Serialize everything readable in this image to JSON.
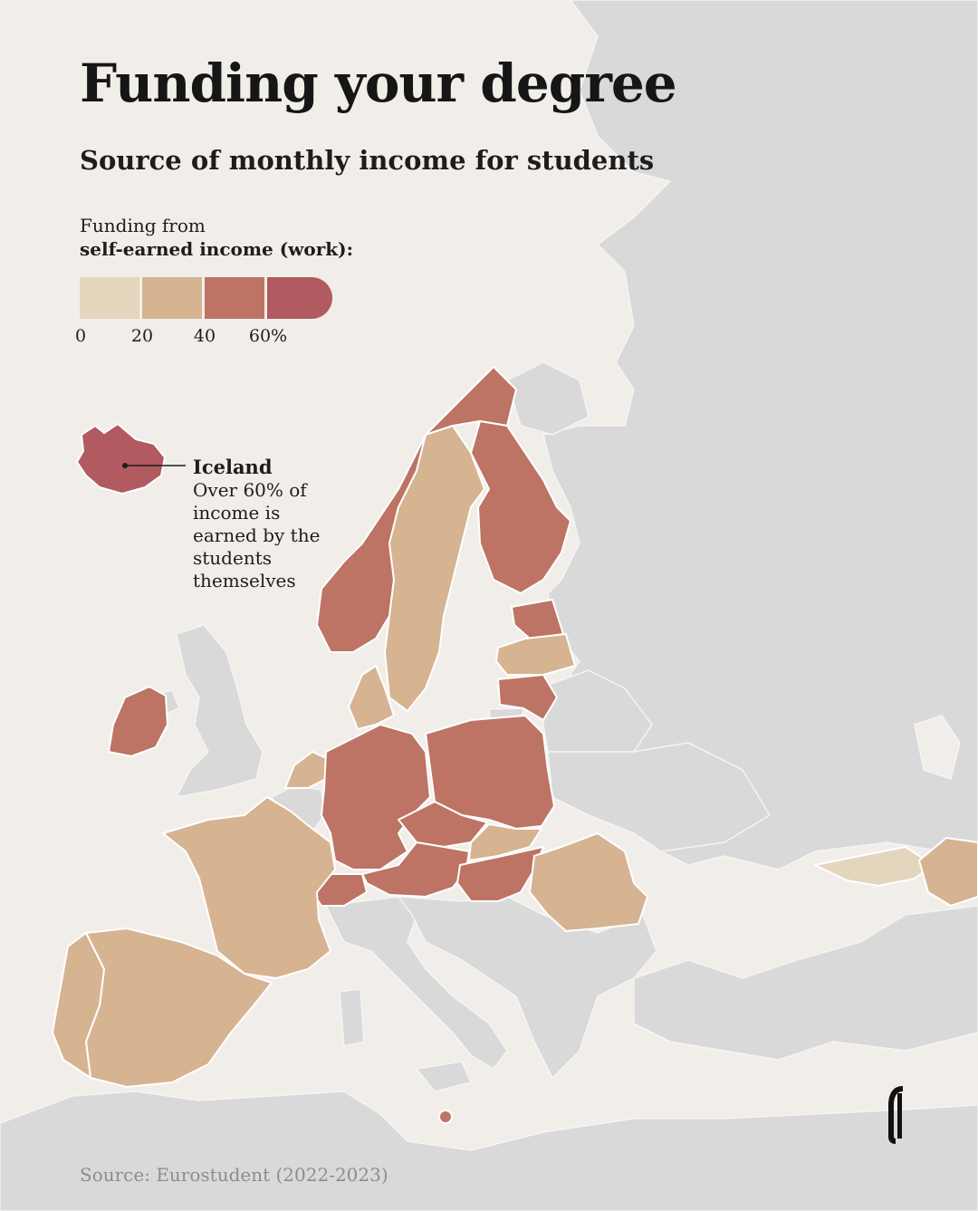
{
  "title": "Funding your degree",
  "subtitle": "Source of monthly income for students",
  "legend": {
    "title_line1": "Funding from",
    "title_line2": "self-earned income (work):",
    "ticks": [
      "0",
      "20",
      "40",
      "60%"
    ],
    "colors": [
      "#e3d6bd",
      "#d6b391",
      "#bd7464",
      "#b15a5f"
    ]
  },
  "callout": {
    "country": "Iceland",
    "text": "Over 60% of income is earned by the students themselves"
  },
  "source": "Source: Eurostudent (2022-2023)",
  "colors": {
    "background": "#f1eeea",
    "no_data": "#d9d9d9",
    "border": "#ffffff",
    "title": "#161616",
    "source": "#8d8d8d"
  },
  "countries": [
    {
      "id": "iceland",
      "bin": 3
    },
    {
      "id": "ireland",
      "bin": 2
    },
    {
      "id": "norway",
      "bin": 2
    },
    {
      "id": "sweden",
      "bin": 1
    },
    {
      "id": "finland",
      "bin": 2
    },
    {
      "id": "estonia",
      "bin": 2
    },
    {
      "id": "latvia",
      "bin": 1
    },
    {
      "id": "lithuania",
      "bin": 2
    },
    {
      "id": "denmark",
      "bin": 1
    },
    {
      "id": "netherlands",
      "bin": 1
    },
    {
      "id": "germany",
      "bin": 2
    },
    {
      "id": "poland",
      "bin": 2
    },
    {
      "id": "czechia",
      "bin": 2
    },
    {
      "id": "slovakia",
      "bin": 1
    },
    {
      "id": "austria",
      "bin": 2
    },
    {
      "id": "switzerland",
      "bin": 2
    },
    {
      "id": "hungary",
      "bin": 2
    },
    {
      "id": "romania",
      "bin": 1
    },
    {
      "id": "france",
      "bin": 1
    },
    {
      "id": "spain",
      "bin": 1
    },
    {
      "id": "portugal",
      "bin": 1
    },
    {
      "id": "georgia",
      "bin": 0
    },
    {
      "id": "armenia",
      "bin": 1
    },
    {
      "id": "malta",
      "bin": 2
    }
  ]
}
